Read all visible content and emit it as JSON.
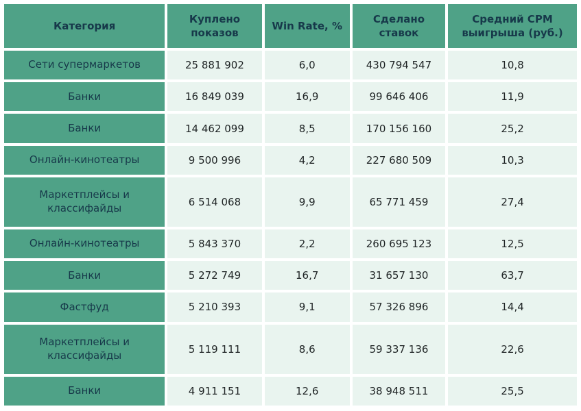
{
  "chart_data": {
    "type": "table",
    "columns": [
      "Категория",
      "Куплено показов",
      "Win Rate, %",
      "Сделано ставок",
      "Средний CPM выигрыша (руб.)"
    ],
    "rows": [
      [
        "Сети супермаркетов",
        "25 881 902",
        "6,0",
        "430 794 547",
        "10,8"
      ],
      [
        "Банки",
        "16 849 039",
        "16,9",
        "99 646 406",
        "11,9"
      ],
      [
        "Банки",
        "14 462 099",
        "8,5",
        "170 156 160",
        "25,2"
      ],
      [
        "Онлайн-кинотеатры",
        "9 500 996",
        "4,2",
        "227 680 509",
        "10,3"
      ],
      [
        "Маркетплейсы и классифайды",
        "6 514 068",
        "9,9",
        "65 771 459",
        "27,4"
      ],
      [
        "Онлайн-кинотеатры",
        "5 843 370",
        "2,2",
        "260 695 123",
        "12,5"
      ],
      [
        "Банки",
        "5 272 749",
        "16,7",
        "31 657 130",
        "63,7"
      ],
      [
        "Фастфуд",
        "5 210 393",
        "9,1",
        "57 326 896",
        "14,4"
      ],
      [
        "Маркетплейсы и классифайды",
        "5 119 111",
        "8,6",
        "59 337 136",
        "22,6"
      ],
      [
        "Банки",
        "4 911 151",
        "12,6",
        "38 948 511",
        "25,5"
      ]
    ]
  },
  "colors": {
    "header_bg": "#4FA287",
    "cell_bg": "#E9F4EF",
    "header_text": "#17394A",
    "cell_text": "#1F2425",
    "gap": "#FFFFFF"
  }
}
